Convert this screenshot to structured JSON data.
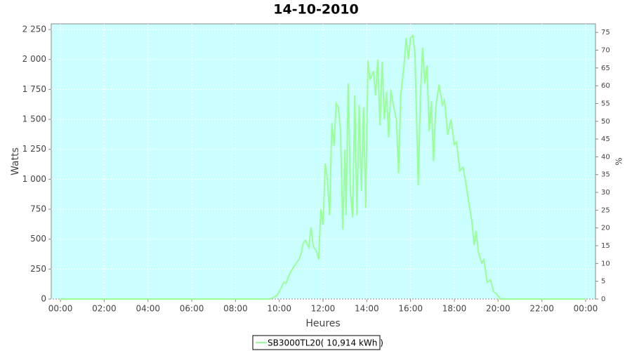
{
  "chart_data": {
    "type": "line",
    "title": "14-10-2010",
    "x_label": "Heures",
    "y_label": "Watts",
    "y2_label": "%",
    "x": [
      0,
      9.6,
      9.9,
      10.1,
      10.2,
      10.3,
      10.5,
      10.7,
      10.9,
      11.0,
      11.1,
      11.2,
      11.35,
      11.45,
      11.55,
      11.7,
      11.8,
      11.9,
      12.0,
      12.1,
      12.2,
      12.3,
      12.4,
      12.5,
      12.6,
      12.7,
      12.8,
      12.9,
      13.0,
      13.05,
      13.15,
      13.25,
      13.35,
      13.45,
      13.55,
      13.65,
      13.75,
      13.85,
      13.95,
      14.05,
      14.15,
      14.3,
      14.4,
      14.5,
      14.6,
      14.7,
      14.8,
      14.9,
      15.0,
      15.1,
      15.2,
      15.35,
      15.45,
      15.55,
      15.7,
      15.8,
      15.9,
      16.0,
      16.1,
      16.2,
      16.35,
      16.45,
      16.55,
      16.65,
      16.75,
      16.85,
      16.95,
      17.05,
      17.15,
      17.3,
      17.45,
      17.55,
      17.7,
      17.85,
      18.0,
      18.1,
      18.25,
      18.4,
      18.55,
      18.7,
      18.8,
      18.9,
      19.0,
      19.1,
      19.25,
      19.35,
      19.5,
      19.65,
      19.8,
      19.95,
      20.1,
      24
    ],
    "series": [
      {
        "name": "SB3000TL20( 10,914 kWh )",
        "color": "#99ff99",
        "values": [
          0,
          0,
          30,
          100,
          140,
          130,
          220,
          280,
          330,
          380,
          470,
          490,
          430,
          600,
          440,
          400,
          330,
          750,
          620,
          1130,
          1000,
          700,
          1470,
          1280,
          1630,
          1600,
          1400,
          580,
          1250,
          700,
          1800,
          900,
          680,
          1700,
          700,
          1620,
          900,
          1600,
          760,
          1990,
          1830,
          1900,
          1700,
          2000,
          1450,
          1980,
          1500,
          1730,
          1350,
          1750,
          1630,
          1500,
          1050,
          1700,
          1950,
          2180,
          2000,
          2180,
          2200,
          2050,
          950,
          1700,
          2100,
          1800,
          1950,
          1400,
          1650,
          1150,
          1600,
          1790,
          1620,
          1660,
          1370,
          1500,
          1290,
          1310,
          1070,
          1100,
          940,
          760,
          650,
          450,
          570,
          390,
          300,
          330,
          140,
          160,
          60,
          40,
          0,
          0
        ]
      }
    ],
    "xlim": [
      -0.42,
      24.45
    ],
    "xticks": [
      {
        "value": 0,
        "label": "00:00"
      },
      {
        "value": 2,
        "label": "02:00"
      },
      {
        "value": 4,
        "label": "04:00"
      },
      {
        "value": 6,
        "label": "06:00"
      },
      {
        "value": 8,
        "label": "08:00"
      },
      {
        "value": 10,
        "label": "10:00"
      },
      {
        "value": 12,
        "label": "12:00"
      },
      {
        "value": 14,
        "label": "14:00"
      },
      {
        "value": 16,
        "label": "16:00"
      },
      {
        "value": 18,
        "label": "18:00"
      },
      {
        "value": 20,
        "label": "20:00"
      },
      {
        "value": 22,
        "label": "22:00"
      },
      {
        "value": 24,
        "label": "00:00"
      }
    ],
    "ylim": [
      0,
      2297
    ],
    "yticks": [
      0,
      250,
      500,
      750,
      {
        "value": 1000,
        "label": "1 000"
      },
      {
        "value": 1250,
        "label": "1 250"
      },
      {
        "value": 1500,
        "label": "1 500"
      },
      {
        "value": 1750,
        "label": "1 750"
      },
      {
        "value": 2000,
        "label": "2 000"
      },
      {
        "value": 2250,
        "label": "2 250"
      }
    ],
    "y2lim": [
      0,
      77.4
    ],
    "y2ticks": [
      0,
      5,
      10,
      15,
      20,
      25,
      30,
      35,
      40,
      45,
      50,
      55,
      60,
      65,
      70,
      75
    ],
    "grid": true,
    "legend": "bottom"
  }
}
